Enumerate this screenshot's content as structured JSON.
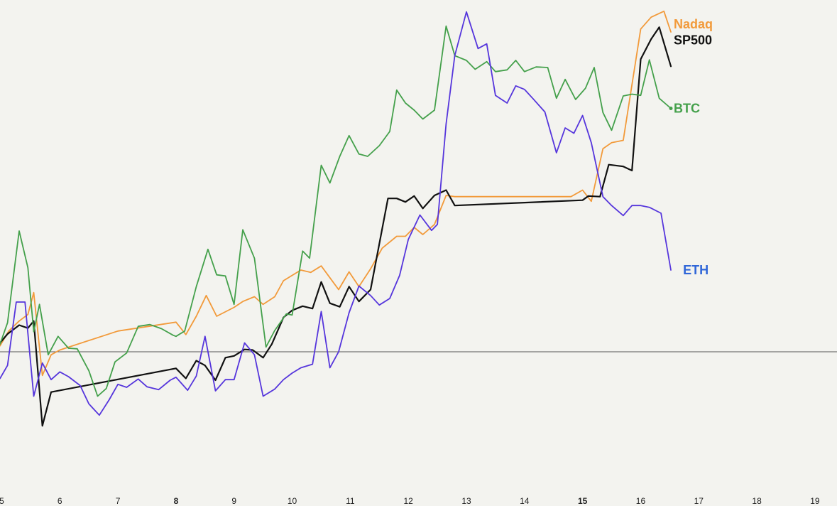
{
  "chart_data": {
    "type": "line",
    "title": "",
    "xlabel": "",
    "ylabel": "",
    "grid": false,
    "x_ticks": [
      {
        "value": 5,
        "label": "5",
        "bold": false
      },
      {
        "value": 6,
        "label": "6",
        "bold": false
      },
      {
        "value": 7,
        "label": "7",
        "bold": false
      },
      {
        "value": 8,
        "label": "8",
        "bold": true
      },
      {
        "value": 9,
        "label": "9",
        "bold": false
      },
      {
        "value": 10,
        "label": "10",
        "bold": false
      },
      {
        "value": 11,
        "label": "11",
        "bold": false
      },
      {
        "value": 12,
        "label": "12",
        "bold": false
      },
      {
        "value": 13,
        "label": "13",
        "bold": false
      },
      {
        "value": 14,
        "label": "14",
        "bold": false
      },
      {
        "value": 15,
        "label": "15",
        "bold": true
      },
      {
        "value": 16,
        "label": "16",
        "bold": false
      },
      {
        "value": 17,
        "label": "17",
        "bold": false
      },
      {
        "value": 18,
        "label": "18",
        "bold": false
      },
      {
        "value": 19,
        "label": "19",
        "bold": false
      }
    ],
    "xlim": [
      4.97,
      19.38
    ],
    "ylim": [
      -23.4,
      59.4
    ],
    "baseline": 0,
    "baseline_color": "#555555",
    "series": [
      {
        "name": "Nadaq",
        "color": "#f29a3a",
        "points": [
          [
            4.97,
            1.0
          ],
          [
            5.12,
            3.5
          ],
          [
            5.3,
            5.2
          ],
          [
            5.45,
            6.3
          ],
          [
            5.55,
            10.0
          ],
          [
            5.7,
            -4.0
          ],
          [
            5.85,
            -0.5
          ],
          [
            6.0,
            0.3
          ],
          [
            7.0,
            3.5
          ],
          [
            8.0,
            5.0
          ],
          [
            8.17,
            2.9
          ],
          [
            8.35,
            6.0
          ],
          [
            8.52,
            9.5
          ],
          [
            8.7,
            6.0
          ],
          [
            9.0,
            7.5
          ],
          [
            9.15,
            8.5
          ],
          [
            9.35,
            9.3
          ],
          [
            9.5,
            8.0
          ],
          [
            9.7,
            9.3
          ],
          [
            9.85,
            12.0
          ],
          [
            10.0,
            12.9
          ],
          [
            10.15,
            13.8
          ],
          [
            10.32,
            13.4
          ],
          [
            10.5,
            14.5
          ],
          [
            10.65,
            12.5
          ],
          [
            10.8,
            10.5
          ],
          [
            10.98,
            13.5
          ],
          [
            11.15,
            11.0
          ],
          [
            11.35,
            14.0
          ],
          [
            11.55,
            17.5
          ],
          [
            11.8,
            19.5
          ],
          [
            11.95,
            19.5
          ],
          [
            12.1,
            21.0
          ],
          [
            12.25,
            19.8
          ],
          [
            12.45,
            21.5
          ],
          [
            12.65,
            26.4
          ],
          [
            12.8,
            26.2
          ],
          [
            14.8,
            26.2
          ],
          [
            15.0,
            27.3
          ],
          [
            15.15,
            25.4
          ],
          [
            15.35,
            34.3
          ],
          [
            15.5,
            35.3
          ],
          [
            15.7,
            35.7
          ],
          [
            16.0,
            54.5
          ],
          [
            16.18,
            56.5
          ],
          [
            16.4,
            57.5
          ],
          [
            16.52,
            54.0
          ]
        ]
      },
      {
        "name": "SP500",
        "color": "#111111",
        "points": [
          [
            4.97,
            1.5
          ],
          [
            5.1,
            3.0
          ],
          [
            5.3,
            4.5
          ],
          [
            5.45,
            4.0
          ],
          [
            5.55,
            5.2
          ],
          [
            5.7,
            -12.5
          ],
          [
            5.85,
            -6.8
          ],
          [
            8.0,
            -2.8
          ],
          [
            8.17,
            -4.5
          ],
          [
            8.35,
            -1.5
          ],
          [
            8.5,
            -2.3
          ],
          [
            8.68,
            -4.8
          ],
          [
            8.85,
            -1.0
          ],
          [
            9.0,
            -0.7
          ],
          [
            9.18,
            0.4
          ],
          [
            9.32,
            0.3
          ],
          [
            9.5,
            -1.0
          ],
          [
            9.65,
            1.3
          ],
          [
            9.85,
            5.8
          ],
          [
            10.0,
            7.0
          ],
          [
            10.18,
            7.7
          ],
          [
            10.35,
            7.3
          ],
          [
            10.5,
            11.8
          ],
          [
            10.65,
            8.2
          ],
          [
            10.82,
            7.6
          ],
          [
            10.98,
            11.0
          ],
          [
            11.15,
            8.5
          ],
          [
            11.35,
            10.5
          ],
          [
            11.65,
            25.9
          ],
          [
            11.8,
            25.9
          ],
          [
            11.95,
            25.3
          ],
          [
            12.1,
            26.3
          ],
          [
            12.25,
            24.2
          ],
          [
            12.45,
            26.4
          ],
          [
            12.65,
            27.3
          ],
          [
            12.8,
            24.7
          ],
          [
            15.0,
            25.6
          ],
          [
            15.1,
            26.3
          ],
          [
            15.3,
            26.2
          ],
          [
            15.45,
            31.6
          ],
          [
            15.7,
            31.3
          ],
          [
            15.85,
            30.6
          ],
          [
            16.0,
            49.4
          ],
          [
            16.18,
            52.8
          ],
          [
            16.32,
            54.8
          ],
          [
            16.52,
            48.2
          ]
        ]
      },
      {
        "name": "BTC",
        "color": "#44a04b",
        "points": [
          [
            4.97,
            1.3
          ],
          [
            5.1,
            4.9
          ],
          [
            5.3,
            20.4
          ],
          [
            5.45,
            14.2
          ],
          [
            5.55,
            3.4
          ],
          [
            5.65,
            8.0
          ],
          [
            5.8,
            -0.5
          ],
          [
            5.97,
            2.6
          ],
          [
            6.15,
            0.6
          ],
          [
            6.3,
            0.5
          ],
          [
            6.5,
            -3.2
          ],
          [
            6.65,
            -7.5
          ],
          [
            6.8,
            -6.2
          ],
          [
            6.95,
            -1.7
          ],
          [
            7.15,
            -0.2
          ],
          [
            7.35,
            4.3
          ],
          [
            7.55,
            4.6
          ],
          [
            7.75,
            3.9
          ],
          [
            7.95,
            2.8
          ],
          [
            8.0,
            2.6
          ],
          [
            8.15,
            3.5
          ],
          [
            8.35,
            11.0
          ],
          [
            8.55,
            17.3
          ],
          [
            8.7,
            13.0
          ],
          [
            8.85,
            12.8
          ],
          [
            9.0,
            8.0
          ],
          [
            9.15,
            20.6
          ],
          [
            9.35,
            15.8
          ],
          [
            9.55,
            0.8
          ],
          [
            9.7,
            3.6
          ],
          [
            9.9,
            6.4
          ],
          [
            10.0,
            6.2
          ],
          [
            10.18,
            17.0
          ],
          [
            10.3,
            15.8
          ],
          [
            10.5,
            31.5
          ],
          [
            10.65,
            28.5
          ],
          [
            10.82,
            33.0
          ],
          [
            10.98,
            36.5
          ],
          [
            11.15,
            33.4
          ],
          [
            11.3,
            33.0
          ],
          [
            11.5,
            34.8
          ],
          [
            11.68,
            37.2
          ],
          [
            11.8,
            44.2
          ],
          [
            11.95,
            42.0
          ],
          [
            12.1,
            40.8
          ],
          [
            12.25,
            39.3
          ],
          [
            12.45,
            40.8
          ],
          [
            12.65,
            55.0
          ],
          [
            12.8,
            50.0
          ],
          [
            13.0,
            49.2
          ],
          [
            13.15,
            47.7
          ],
          [
            13.35,
            49.0
          ],
          [
            13.5,
            47.3
          ],
          [
            13.7,
            47.6
          ],
          [
            13.85,
            49.2
          ],
          [
            14.0,
            47.3
          ],
          [
            14.2,
            48.1
          ],
          [
            14.4,
            48.0
          ],
          [
            14.55,
            42.8
          ],
          [
            14.7,
            46.0
          ],
          [
            14.88,
            42.6
          ],
          [
            15.05,
            44.5
          ],
          [
            15.2,
            48.0
          ],
          [
            15.35,
            40.4
          ],
          [
            15.5,
            37.4
          ],
          [
            15.7,
            43.2
          ],
          [
            15.85,
            43.5
          ],
          [
            16.0,
            43.3
          ],
          [
            16.15,
            49.3
          ],
          [
            16.32,
            42.8
          ],
          [
            16.52,
            41.1
          ]
        ]
      },
      {
        "name": "ETH",
        "color": "#5535dc",
        "points": [
          [
            4.97,
            -4.5
          ],
          [
            5.1,
            -2.3
          ],
          [
            5.25,
            8.4
          ],
          [
            5.4,
            8.4
          ],
          [
            5.55,
            -7.5
          ],
          [
            5.7,
            -1.9
          ],
          [
            5.85,
            -4.7
          ],
          [
            6.0,
            -3.4
          ],
          [
            6.15,
            -4.2
          ],
          [
            6.35,
            -5.7
          ],
          [
            6.5,
            -8.8
          ],
          [
            6.68,
            -10.7
          ],
          [
            6.85,
            -8.1
          ],
          [
            7.0,
            -5.5
          ],
          [
            7.15,
            -6.0
          ],
          [
            7.35,
            -4.6
          ],
          [
            7.5,
            -5.9
          ],
          [
            7.7,
            -6.4
          ],
          [
            7.9,
            -4.8
          ],
          [
            8.0,
            -4.3
          ],
          [
            8.2,
            -6.5
          ],
          [
            8.35,
            -4.1
          ],
          [
            8.5,
            2.6
          ],
          [
            8.68,
            -6.6
          ],
          [
            8.85,
            -4.7
          ],
          [
            9.0,
            -4.7
          ],
          [
            9.18,
            1.5
          ],
          [
            9.35,
            -0.5
          ],
          [
            9.5,
            -7.5
          ],
          [
            9.7,
            -6.3
          ],
          [
            9.85,
            -4.7
          ],
          [
            10.0,
            -3.6
          ],
          [
            10.15,
            -2.7
          ],
          [
            10.35,
            -2.1
          ],
          [
            10.5,
            6.8
          ],
          [
            10.65,
            -2.7
          ],
          [
            10.8,
            0.0
          ],
          [
            10.98,
            6.6
          ],
          [
            11.15,
            11.1
          ],
          [
            11.35,
            9.5
          ],
          [
            11.5,
            7.9
          ],
          [
            11.68,
            9.0
          ],
          [
            11.85,
            12.9
          ],
          [
            12.0,
            19.0
          ],
          [
            12.2,
            23.1
          ],
          [
            12.4,
            20.5
          ],
          [
            12.5,
            21.5
          ],
          [
            12.65,
            38.5
          ],
          [
            12.8,
            50.0
          ],
          [
            13.0,
            57.4
          ],
          [
            13.2,
            51.2
          ],
          [
            13.35,
            52.0
          ],
          [
            13.5,
            43.3
          ],
          [
            13.7,
            42.0
          ],
          [
            13.85,
            44.9
          ],
          [
            14.0,
            44.3
          ],
          [
            14.15,
            42.7
          ],
          [
            14.35,
            40.5
          ],
          [
            14.55,
            33.6
          ],
          [
            14.7,
            37.8
          ],
          [
            14.85,
            36.9
          ],
          [
            15.0,
            39.9
          ],
          [
            15.15,
            35.3
          ],
          [
            15.35,
            26.2
          ],
          [
            15.5,
            24.7
          ],
          [
            15.7,
            23.0
          ],
          [
            15.85,
            24.7
          ],
          [
            16.0,
            24.7
          ],
          [
            16.15,
            24.4
          ],
          [
            16.35,
            23.4
          ],
          [
            16.52,
            13.8
          ]
        ]
      }
    ],
    "series_labels": [
      {
        "name": "Nadaq",
        "color": "#f29a3a",
        "anchor_x": 16.52,
        "y": 55.3
      },
      {
        "name": "SP500",
        "color": "#111111",
        "anchor_x": 16.52,
        "y": 52.6
      },
      {
        "name": "BTC",
        "color": "#44a04b",
        "anchor_x": 16.52,
        "y": 41.1
      },
      {
        "name": "ETH",
        "color": "#2f66d8",
        "anchor_x": 16.68,
        "y": 13.8
      }
    ]
  }
}
